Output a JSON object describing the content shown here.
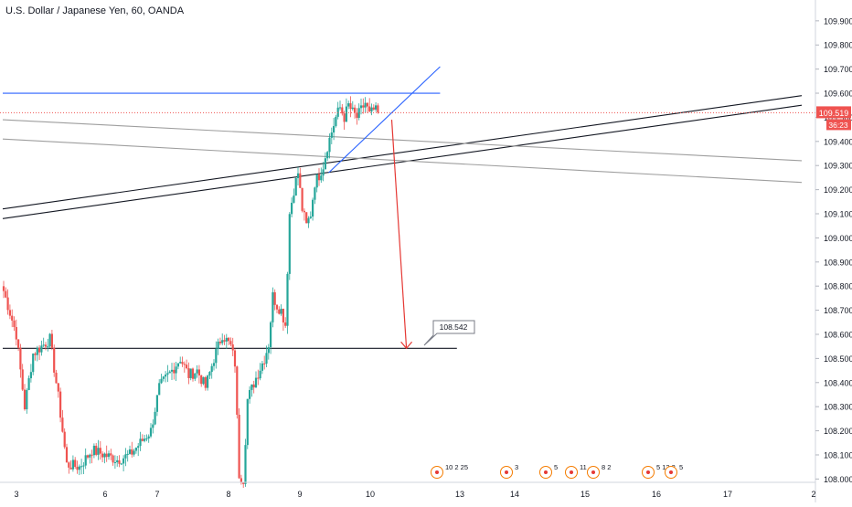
{
  "header": {
    "title": "U.S. Dollar / Japanese Yen, 60, OANDA"
  },
  "colors": {
    "up": "#26a69a",
    "down": "#ef5350",
    "blue_line": "#2962ff",
    "red_arrow": "#e53935",
    "black_line": "#131722",
    "gray_line": "#9e9e9e",
    "axis_text": "#131722",
    "grid": "#e6e6e6"
  },
  "price_axis": {
    "ticks": [
      "109.900",
      "109.800",
      "109.700",
      "109.600",
      "109.500",
      "109.400",
      "109.300",
      "109.200",
      "109.100",
      "109.000",
      "108.900",
      "108.800",
      "108.700",
      "108.600",
      "108.500",
      "108.400",
      "108.300",
      "108.200",
      "108.100",
      "108.000"
    ],
    "current_price": "109.519",
    "countdown": "36:23"
  },
  "time_axis": {
    "labels": [
      "3",
      "6",
      "7",
      "8",
      "9",
      "10",
      "13",
      "14",
      "15",
      "16",
      "17",
      "2"
    ]
  },
  "annotations": {
    "target_label": "108.542"
  },
  "event_badges": [
    "10 2 25",
    "3",
    "5",
    "11",
    "8 2",
    "5 12 2",
    "5"
  ],
  "chart_data": {
    "type": "candlestick",
    "title": "U.S. Dollar / Japanese Yen, 60, OANDA",
    "symbol": "USDJPY",
    "interval": "60",
    "source": "OANDA",
    "ylim": [
      107.99,
      109.96
    ],
    "current_price": 109.519,
    "x_labels": [
      "3",
      "6",
      "7",
      "8",
      "9",
      "10",
      "13",
      "14",
      "15",
      "16",
      "17",
      "2"
    ],
    "series": [
      {
        "name": "USDJPY",
        "anchors": [
          [
            0,
            108.78
          ],
          [
            6,
            108.6
          ],
          [
            10,
            108.3
          ],
          [
            14,
            108.52
          ],
          [
            18,
            108.55
          ],
          [
            22,
            108.58
          ],
          [
            26,
            108.34
          ],
          [
            30,
            108.06
          ],
          [
            36,
            108.05
          ],
          [
            42,
            108.12
          ],
          [
            48,
            108.1
          ],
          [
            54,
            108.08
          ],
          [
            60,
            108.1
          ],
          [
            66,
            108.16
          ],
          [
            70,
            108.2
          ],
          [
            74,
            108.38
          ],
          [
            80,
            108.45
          ],
          [
            84,
            108.5
          ],
          [
            88,
            108.43
          ],
          [
            92,
            108.45
          ],
          [
            96,
            108.38
          ],
          [
            100,
            108.5
          ],
          [
            104,
            108.6
          ],
          [
            108,
            108.55
          ],
          [
            110,
            108.48
          ],
          [
            112,
            108.02
          ],
          [
            114,
            108.0
          ],
          [
            116,
            108.33
          ],
          [
            120,
            108.42
          ],
          [
            124,
            108.5
          ],
          [
            126,
            108.56
          ],
          [
            128,
            108.76
          ],
          [
            130,
            108.72
          ],
          [
            132,
            108.7
          ],
          [
            134,
            108.64
          ],
          [
            136,
            109.1
          ],
          [
            138,
            109.2
          ],
          [
            140,
            109.27
          ],
          [
            142,
            109.12
          ],
          [
            144,
            109.05
          ],
          [
            146,
            109.1
          ],
          [
            148,
            109.23
          ],
          [
            150,
            109.26
          ],
          [
            152,
            109.3
          ],
          [
            154,
            109.38
          ],
          [
            156,
            109.44
          ],
          [
            158,
            109.5
          ],
          [
            160,
            109.54
          ],
          [
            162,
            109.5
          ],
          [
            164,
            109.55
          ],
          [
            166,
            109.52
          ],
          [
            168,
            109.5
          ],
          [
            170,
            109.53
          ],
          [
            172,
            109.56
          ],
          [
            174,
            109.51
          ],
          [
            176,
            109.53
          ],
          [
            178,
            109.52
          ]
        ]
      }
    ],
    "lines": [
      {
        "name": "resistance-horizontal",
        "color": "blue",
        "y": 109.6,
        "x_range": [
          0,
          208
        ]
      },
      {
        "name": "target-horizontal",
        "color": "black",
        "y": 108.542,
        "x_range": [
          0,
          216
        ]
      },
      {
        "name": "trendline-upper",
        "color": "black",
        "from": [
          0,
          109.12
        ],
        "to": [
          380,
          109.59
        ]
      },
      {
        "name": "trendline-lower",
        "color": "black",
        "from": [
          0,
          109.08
        ],
        "to": [
          380,
          109.55
        ]
      },
      {
        "name": "channel-gray-upper",
        "color": "gray",
        "from": [
          0,
          109.49
        ],
        "to": [
          380,
          109.32
        ]
      },
      {
        "name": "channel-gray-lower",
        "color": "gray",
        "from": [
          0,
          109.41
        ],
        "to": [
          380,
          109.23
        ]
      },
      {
        "name": "rising-wedge",
        "color": "blue",
        "from": [
          155,
          109.27
        ],
        "to": [
          208,
          109.71
        ]
      }
    ],
    "arrow": {
      "from": [
        185,
        109.49
      ],
      "to": [
        192,
        108.542
      ],
      "label": "108.542"
    }
  }
}
